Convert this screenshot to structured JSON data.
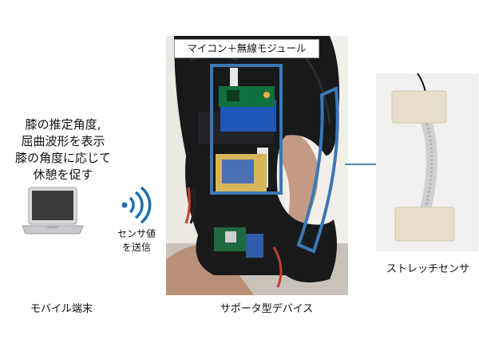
{
  "left_panel": {
    "description_lines": [
      "膝の推定角度,",
      "屈曲波形を表示",
      "膝の角度に応じて",
      "休憩を促す"
    ],
    "send_label_lines": [
      "センサ値",
      "を送信"
    ],
    "mobile_label": "モバイル端末"
  },
  "center_panel": {
    "module_label": "マイコン＋無線モジュール",
    "device_label": "サポータ型デバイス"
  },
  "right_panel": {
    "sensor_label": "ストレッチセンサ"
  },
  "colors": {
    "accent_blue": "#3b78b6",
    "wifi_blue": "#1d6fb0"
  },
  "icons": {
    "laptop": "laptop-icon",
    "wifi": "wifi-icon"
  }
}
